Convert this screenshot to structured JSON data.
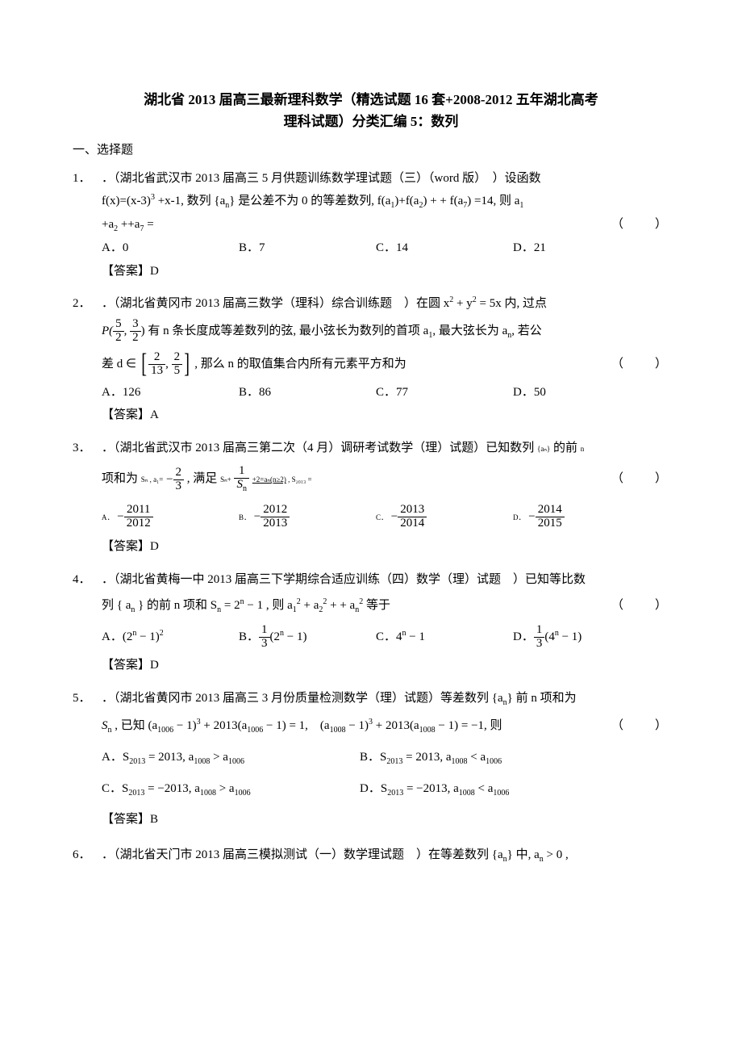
{
  "title_line1": "湖北省 2013 届高三最新理科数学（精选试题 16 套+2008-2012 五年湖北高考",
  "title_line2": "理科试题）分类汇编 5：数列",
  "section_heading": "一、选择题",
  "paren_marker": "（　　）",
  "answer_prefix": "【答案】",
  "questions": [
    {
      "num": "1．",
      "stem_a": "．（湖北省武汉市 2013 届高三 5 月供题训练数学理试题（三）（word 版）　）设函数",
      "stem_b_prefix": "f(x)=(x-3)",
      "stem_b_exp": "3",
      "stem_b_mid": " +x-1, 数列 {a",
      "stem_b_sub_n": "n",
      "stem_b_mid2": "} 是公差不为 0 的等差数列, f(a",
      "stem_b_sub1": "1",
      "stem_b_mid3": ")+f(a",
      "stem_b_sub2": "2",
      "stem_b_mid4": ") + + f(a",
      "stem_b_sub7": "7",
      "stem_b_mid5": ") =14, 则 a",
      "stem_b_sub1b": "1",
      "stem_c": "+a",
      "stem_c_sub2": "2",
      "stem_c_mid": " ++a",
      "stem_c_sub7": "7",
      "stem_c_end": " =",
      "opts": [
        "A．0",
        "B．7",
        "C．14",
        "D．21"
      ],
      "ans": "D"
    },
    {
      "num": "2．",
      "stem_a": "．（湖北省黄冈市 2013 届高三数学（理科）综合训练题　）在圆 x",
      "stem_a_sup": "2",
      "stem_a_mid": " + y",
      "stem_a_sup2": "2",
      "stem_a_end": " = 5x 内, 过点",
      "P_label": "P(",
      "frac1_num": "5",
      "frac1_den": "2",
      "comma": ", ",
      "frac2_num": "3",
      "frac2_den": "2",
      "P_close": ") 有 n 条长度成等差数列的弦, 最小弦长为数列的首项 a",
      "P_sub1": "1",
      "P_mid": ", 最大弦长为 a",
      "P_subn": "n",
      "P_end": ", 若公",
      "line3a": "差 d ∈",
      "br_l": "[",
      "frac3_num": "2",
      "frac3_den": "13",
      "comma2": ", ",
      "frac4_num": "2",
      "frac4_den": "5",
      "br_r": "]",
      "line3b": ", 那么 n 的取值集合内所有元素平方和为",
      "opts": [
        "A．126",
        "B．86",
        "C．77",
        "D．50"
      ],
      "ans": "A"
    },
    {
      "num": "3．",
      "stem_a": "．（湖北省武汉市 2013 届高三第二次（4 月）调研考试数学（理）试题）已知数列 ",
      "stem_a_tiny": "{aₙ}",
      "stem_a_end": " 的前 ",
      "stem_a_tiny2": "n",
      "line2a": "项和为 ",
      "line2_tiny1": "Sₙ , a₁=",
      "neg": "−",
      "frac5_num": "2",
      "frac5_den": "3",
      "line2b": " , 满足 ",
      "line2_tiny2": "Sₙ+",
      "frac6_num": "1",
      "frac6_den_S": "S",
      "frac6_den_n": "n",
      "line2c": " ",
      "line2_under": "+2=aₙ(n≥2)",
      "line2_tiny3": " , S₂₀₁₃ =",
      "optA_neg": "−",
      "optA_num": "2011",
      "optA_den": "2012",
      "optB_neg": "−",
      "optB_num": "2012",
      "optB_den": "2013",
      "optC_neg": "−",
      "optC_num": "2013",
      "optC_den": "2014",
      "optD_neg": "−",
      "optD_num": "2014",
      "optD_den": "2015",
      "optA_label": "A．",
      "optB_label": "B．",
      "optC_label": "C．",
      "optD_label": "D．",
      "ans": "D"
    },
    {
      "num": "4．",
      "stem_a": "．（湖北省黄梅一中 2013 届高三下学期综合适应训练（四）数学（理）试题　）已知等比数",
      "line2a": "列 { a",
      "line2_subn": "n",
      "line2_mid": " } 的前 n 项和 S",
      "line2_subn2": "n",
      "line2_mid2": " = 2",
      "line2_supn": "n",
      "line2_mid3": " − 1 , 则 a",
      "line2_sub1": "1",
      "line2_sup2a": "2",
      "line2_plus": " + a",
      "line2_sub2": "2",
      "line2_sup2b": "2",
      "line2_plus2": " + + a",
      "line2_subn3": "n",
      "line2_sup2c": "2",
      "line2_end": " 等于",
      "optA_text": "A．(2",
      "optA_supn": "n",
      "optA_mid": " − 1)",
      "optA_sup2": "2",
      "optB_text": "B．",
      "optB_frac_num": "1",
      "optB_frac_den": "3",
      "optB_mid": "(2",
      "optB_supn": "n",
      "optB_end": " − 1)",
      "optC_text": "C．4",
      "optC_supn": "n",
      "optC_end": " − 1",
      "optD_text": "D．",
      "optD_frac_num": "1",
      "optD_frac_den": "3",
      "optD_mid": "(4",
      "optD_supn": "n",
      "optD_end": " − 1)",
      "ans": "D"
    },
    {
      "num": "5．",
      "stem_a": "．（湖北省黄冈市 2013 届高三 3 月份质量检测数学（理）试题）等差数列 {a",
      "stem_subn": "n",
      "stem_end": "} 前 n 项和为",
      "line2_S": "S",
      "line2_Ssub": "n",
      "line2a": " , 已知 (a",
      "line2_sub1006": "1006",
      "line2_mid": " − 1)",
      "line2_sup3": "3",
      "line2_mid2": " + 2013(a",
      "line2_sub1006b": "1006",
      "line2_mid3": " − 1) = 1,　(a",
      "line2_sub1008": "1008",
      "line2_mid4": " − 1)",
      "line2_sup3b": "3",
      "line2_mid5": " + 2013(a",
      "line2_sub1008b": "1008",
      "line2_mid6": " − 1) = −1, 则",
      "optA": "A．S",
      "optA_sub": "2013",
      "optA_mid": " = 2013,  a",
      "optA_sub2": "1008",
      "optA_rel": " > a",
      "optA_sub3": "1006",
      "optB": "B．S",
      "optB_sub": "2013",
      "optB_mid": " = 2013,  a",
      "optB_sub2": "1008",
      "optB_rel": " < a",
      "optB_sub3": "1006",
      "optC": "C．S",
      "optC_sub": "2013",
      "optC_mid": " = −2013,  a",
      "optC_sub2": "1008",
      "optC_rel": " > a",
      "optC_sub3": "1006",
      "optD": "D．S",
      "optD_sub": "2013",
      "optD_mid": " = −2013,  a",
      "optD_sub2": "1008",
      "optD_rel": " < a",
      "optD_sub3": "1006",
      "ans": "B"
    },
    {
      "num": "6．",
      "stem_a": "．（湖北省天门市 2013 届高三模拟测试（一）数学理试题　）在等差数列 {a",
      "stem_subn": "n",
      "stem_mid": "} 中, a",
      "stem_subn2": "n",
      "stem_end": " > 0 ,"
    }
  ]
}
